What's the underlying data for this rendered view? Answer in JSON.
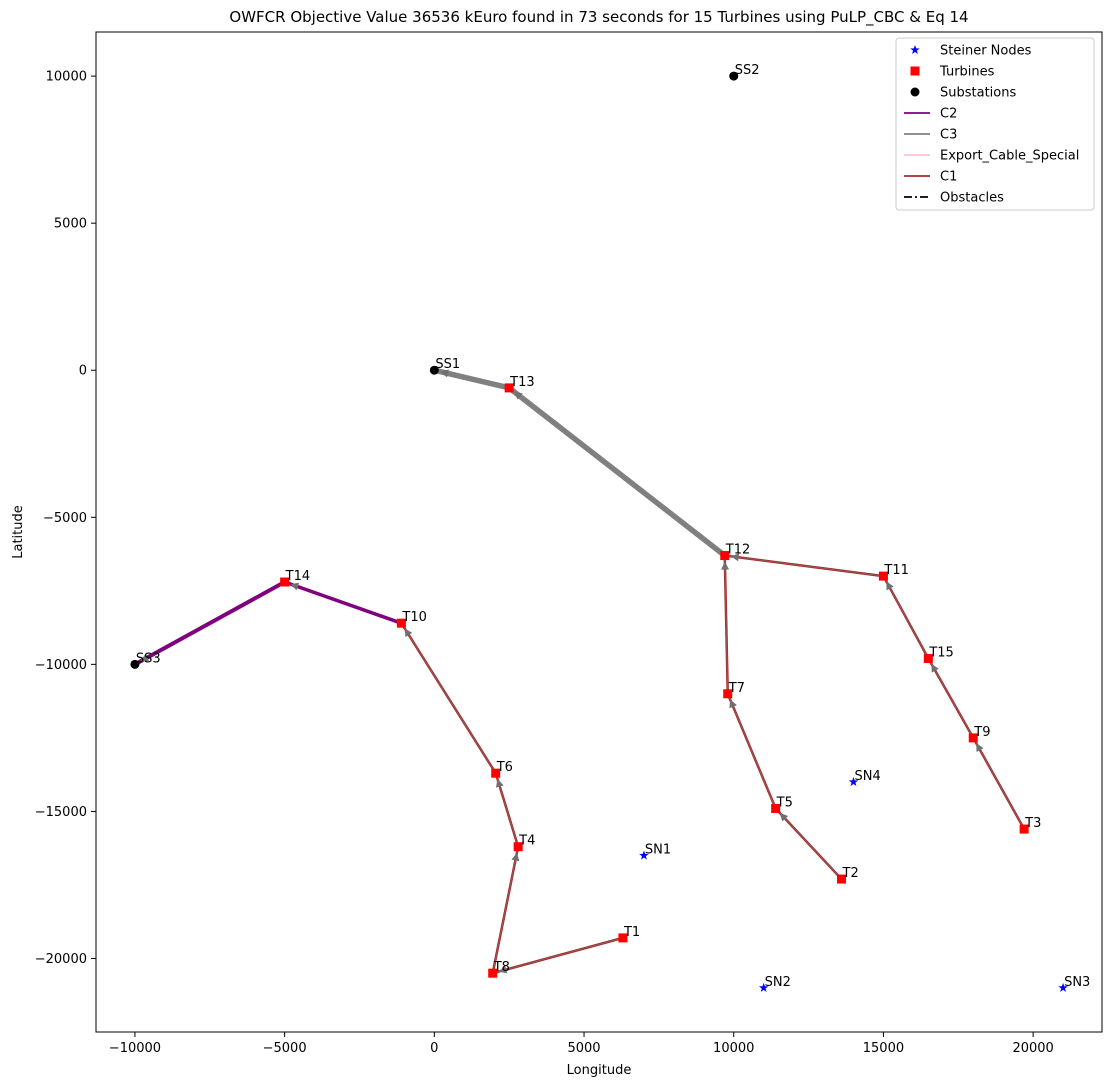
{
  "chart_data": {
    "type": "scatter",
    "title": "OWFCR Objective Value 36536 kEuro found in 73 seconds for 15 Turbines using PuLP_CBC & Eq 14",
    "xlabel": "Longitude",
    "ylabel": "Latitude",
    "xlim": [
      -11300,
      22300
    ],
    "ylim": [
      -22500,
      11500
    ],
    "xticks": [
      -10000,
      -5000,
      0,
      5000,
      10000,
      15000,
      20000
    ],
    "yticks": [
      -20000,
      -15000,
      -10000,
      -5000,
      0,
      5000,
      10000
    ],
    "grid": false,
    "legend_position": "top-right",
    "colors": {
      "C2": "#800080",
      "C3": "#808080",
      "Export_Cable_Special": "#ffc0cb",
      "C1": "#a52a2a",
      "steiner": "#0000ff",
      "turbine": "#ff0000",
      "substation": "#000000"
    },
    "legend": [
      {
        "key": "steiner",
        "label": "Steiner Nodes",
        "marker": "star"
      },
      {
        "key": "turbines",
        "label": "Turbines",
        "marker": "square"
      },
      {
        "key": "substations",
        "label": "Substations",
        "marker": "circle"
      },
      {
        "key": "C2",
        "label": "C2",
        "marker": "line"
      },
      {
        "key": "C3",
        "label": "C3",
        "marker": "line"
      },
      {
        "key": "Export_Cable_Special",
        "label": "Export_Cable_Special",
        "marker": "line"
      },
      {
        "key": "C1",
        "label": "C1",
        "marker": "line"
      },
      {
        "key": "Obstacles",
        "label": "Obstacles",
        "marker": "dashdot"
      }
    ],
    "steiner_nodes": [
      {
        "label": "SN1",
        "x": 7000,
        "y": -16500
      },
      {
        "label": "SN2",
        "x": 11000,
        "y": -21000
      },
      {
        "label": "SN3",
        "x": 21000,
        "y": -21000
      },
      {
        "label": "SN4",
        "x": 14000,
        "y": -14000
      }
    ],
    "turbines": [
      {
        "label": "T1",
        "x": 6300,
        "y": -19300
      },
      {
        "label": "T2",
        "x": 13600,
        "y": -17300
      },
      {
        "label": "T3",
        "x": 19700,
        "y": -15600
      },
      {
        "label": "T4",
        "x": 2800,
        "y": -16200
      },
      {
        "label": "T5",
        "x": 11400,
        "y": -14900
      },
      {
        "label": "T6",
        "x": 2050,
        "y": -13700
      },
      {
        "label": "T7",
        "x": 9800,
        "y": -11000
      },
      {
        "label": "T8",
        "x": 1950,
        "y": -20500
      },
      {
        "label": "T9",
        "x": 18000,
        "y": -12500
      },
      {
        "label": "T10",
        "x": -1100,
        "y": -8600
      },
      {
        "label": "T11",
        "x": 15000,
        "y": -7000
      },
      {
        "label": "T12",
        "x": 9700,
        "y": -6300
      },
      {
        "label": "T13",
        "x": 2500,
        "y": -600
      },
      {
        "label": "T14",
        "x": -5000,
        "y": -7200
      },
      {
        "label": "T15",
        "x": 16500,
        "y": -9800
      }
    ],
    "substations": [
      {
        "label": "SS1",
        "x": 0,
        "y": 0
      },
      {
        "label": "SS2",
        "x": 10000,
        "y": 10000
      },
      {
        "label": "SS3",
        "x": -10000,
        "y": -10000
      }
    ],
    "cables": [
      {
        "from": "T1",
        "to": "T8",
        "type": "C1",
        "width": 2.5
      },
      {
        "from": "T8",
        "to": "T4",
        "type": "C1",
        "width": 2.5
      },
      {
        "from": "T4",
        "to": "T6",
        "type": "C1",
        "width": 2.5
      },
      {
        "from": "T6",
        "to": "T10",
        "type": "C1",
        "width": 2.5
      },
      {
        "from": "T10",
        "to": "T14",
        "type": "C2",
        "width": 3.5
      },
      {
        "from": "T14",
        "to": "SS3",
        "type": "C2",
        "width": 4
      },
      {
        "from": "T2",
        "to": "T5",
        "type": "C1",
        "width": 2.5
      },
      {
        "from": "T5",
        "to": "T7",
        "type": "C1",
        "width": 2.5
      },
      {
        "from": "T7",
        "to": "T12",
        "type": "C1",
        "width": 2.5
      },
      {
        "from": "T3",
        "to": "T9",
        "type": "C1",
        "width": 2.5
      },
      {
        "from": "T9",
        "to": "T15",
        "type": "C1",
        "width": 2.5
      },
      {
        "from": "T15",
        "to": "T11",
        "type": "C1",
        "width": 2.5
      },
      {
        "from": "T11",
        "to": "T12",
        "type": "C1",
        "width": 2.5
      },
      {
        "from": "T12",
        "to": "T13",
        "type": "C3",
        "width": 5.5
      },
      {
        "from": "T13",
        "to": "SS1",
        "type": "C3",
        "width": 5.5
      }
    ]
  }
}
